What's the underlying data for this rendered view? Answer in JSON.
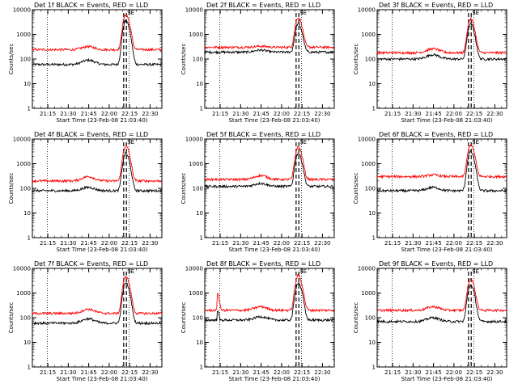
{
  "x_tick_labels": [
    "21:15",
    "21:30",
    "21:45",
    "22:00",
    "22:15",
    "22:30"
  ],
  "y_tick_labels": [
    "1",
    "10",
    "100",
    "1000",
    "10000"
  ],
  "xlabel": "Start Time (23-Feb-08 21:03:40)",
  "ylabel": "Counts/sec",
  "chart_data": [
    {
      "type": "line",
      "title": "Det 1f BLACK = Events, RED = LLD",
      "ylabel": "Counts/sec",
      "xlabel": "Start Time (23-Feb-08 21:03:40)",
      "x_ticks": [
        "21:15",
        "21:30",
        "21:45",
        "22:00",
        "22:15",
        "22:30"
      ],
      "y_scale": "log",
      "ylim": [
        1,
        10000
      ],
      "xlim_minutes": [
        0,
        95
      ],
      "dotted_lines_min": [
        11,
        71
      ],
      "dashed_lines_min": [
        67,
        69
      ],
      "marker_labels": [
        "S",
        "E"
      ],
      "series": [
        {
          "color": "#000000",
          "baseline": 60,
          "bump": 90,
          "peak": 3500
        },
        {
          "color": "#ff0000",
          "baseline": 240,
          "bump": 320,
          "peak": 6000
        }
      ]
    },
    {
      "type": "line",
      "title": "Det 2f BLACK = Events, RED = LLD",
      "ylabel": "Counts/sec",
      "xlabel": "Start Time (23-Feb-08 21:03:40)",
      "x_ticks": [
        "21:15",
        "21:30",
        "21:45",
        "22:00",
        "22:15",
        "22:30"
      ],
      "y_scale": "log",
      "ylim": [
        1,
        10000
      ],
      "xlim_minutes": [
        0,
        95
      ],
      "dotted_lines_min": [
        11,
        71
      ],
      "dashed_lines_min": [
        67,
        69
      ],
      "marker_labels": [
        "S",
        "E"
      ],
      "series": [
        {
          "color": "#000000",
          "baseline": 190,
          "bump": 230,
          "peak": 2500
        },
        {
          "color": "#ff0000",
          "baseline": 300,
          "bump": 330,
          "peak": 4500
        }
      ]
    },
    {
      "type": "line",
      "title": "Det 3f BLACK = Events, RED = LLD",
      "ylabel": "Counts/sec",
      "xlabel": "Start Time (23-Feb-08 21:03:40)",
      "x_ticks": [
        "21:15",
        "21:30",
        "21:45",
        "22:00",
        "22:15",
        "22:30"
      ],
      "y_scale": "log",
      "ylim": [
        1,
        10000
      ],
      "xlim_minutes": [
        0,
        95
      ],
      "dotted_lines_min": [
        11,
        71
      ],
      "dashed_lines_min": [
        67,
        69
      ],
      "marker_labels": [
        "S",
        "E"
      ],
      "series": [
        {
          "color": "#000000",
          "baseline": 100,
          "bump": 150,
          "peak": 2500
        },
        {
          "color": "#ff0000",
          "baseline": 180,
          "bump": 260,
          "peak": 4000
        }
      ]
    },
    {
      "type": "line",
      "title": "Det 4f BLACK = Events, RED = LLD",
      "ylabel": "Counts/sec",
      "xlabel": "Start Time (23-Feb-08 21:03:40)",
      "x_ticks": [
        "21:15",
        "21:30",
        "21:45",
        "22:00",
        "22:15",
        "22:30"
      ],
      "y_scale": "log",
      "ylim": [
        1,
        10000
      ],
      "xlim_minutes": [
        0,
        95
      ],
      "dotted_lines_min": [
        11,
        71
      ],
      "dashed_lines_min": [
        67,
        69
      ],
      "marker_labels": [
        "S",
        "E"
      ],
      "series": [
        {
          "color": "#000000",
          "baseline": 80,
          "bump": 110,
          "peak": 2500
        },
        {
          "color": "#ff0000",
          "baseline": 200,
          "bump": 300,
          "peak": 5000
        }
      ]
    },
    {
      "type": "line",
      "title": "Det 5f BLACK = Events, RED = LLD",
      "ylabel": "Counts/sec",
      "xlabel": "Start Time (23-Feb-08 21:03:40)",
      "x_ticks": [
        "21:15",
        "21:30",
        "21:45",
        "22:00",
        "22:15",
        "22:30"
      ],
      "y_scale": "log",
      "ylim": [
        1,
        10000
      ],
      "xlim_minutes": [
        0,
        95
      ],
      "dotted_lines_min": [
        11,
        71
      ],
      "dashed_lines_min": [
        67,
        69
      ],
      "marker_labels": [
        "S",
        "E"
      ],
      "series": [
        {
          "color": "#000000",
          "baseline": 120,
          "bump": 160,
          "peak": 2500
        },
        {
          "color": "#ff0000",
          "baseline": 230,
          "bump": 330,
          "peak": 4500
        }
      ]
    },
    {
      "type": "line",
      "title": "Det 6f BLACK = Events, RED = LLD",
      "ylabel": "Counts/sec",
      "xlabel": "Start Time (23-Feb-08 21:03:40)",
      "x_ticks": [
        "21:15",
        "21:30",
        "21:45",
        "22:00",
        "22:15",
        "22:30"
      ],
      "y_scale": "log",
      "ylim": [
        1,
        10000
      ],
      "xlim_minutes": [
        0,
        95
      ],
      "dotted_lines_min": [
        11,
        71
      ],
      "dashed_lines_min": [
        67,
        69
      ],
      "marker_labels": [
        "S",
        "E"
      ],
      "series": [
        {
          "color": "#000000",
          "baseline": 80,
          "bump": 110,
          "peak": 3000
        },
        {
          "color": "#ff0000",
          "baseline": 300,
          "bump": 350,
          "peak": 5500
        }
      ]
    },
    {
      "type": "line",
      "title": "Det 7f BLACK = Events, RED = LLD",
      "ylabel": "Counts/sec",
      "xlabel": "Start Time (23-Feb-08 21:03:40)",
      "x_ticks": [
        "21:15",
        "21:30",
        "21:45",
        "22:00",
        "22:15",
        "22:30"
      ],
      "y_scale": "log",
      "ylim": [
        1,
        10000
      ],
      "xlim_minutes": [
        0,
        95
      ],
      "dotted_lines_min": [
        11,
        71
      ],
      "dashed_lines_min": [
        67,
        69
      ],
      "marker_labels": [
        "S",
        "E"
      ],
      "series": [
        {
          "color": "#000000",
          "baseline": 60,
          "bump": 90,
          "peak": 2500
        },
        {
          "color": "#ff0000",
          "baseline": 150,
          "bump": 220,
          "peak": 4500
        }
      ]
    },
    {
      "type": "line",
      "title": "Det 8f BLACK = Events, RED = LLD",
      "ylabel": "Counts/sec",
      "xlabel": "Start Time (23-Feb-08 21:03:40)",
      "x_ticks": [
        "21:15",
        "21:30",
        "21:45",
        "22:00",
        "22:15",
        "22:30"
      ],
      "y_scale": "log",
      "ylim": [
        1,
        10000
      ],
      "xlim_minutes": [
        0,
        95
      ],
      "dotted_lines_min": [
        11,
        71
      ],
      "dashed_lines_min": [
        67,
        69
      ],
      "marker_labels": [
        "S",
        "E"
      ],
      "series": [
        {
          "color": "#000000",
          "baseline": 80,
          "bump": 110,
          "peak": 2500,
          "early_spike": 200
        },
        {
          "color": "#ff0000",
          "baseline": 200,
          "bump": 280,
          "peak": 5000,
          "early_spike": 1000
        }
      ]
    },
    {
      "type": "line",
      "title": "Det 9f BLACK = Events, RED = LLD",
      "ylabel": "Counts/sec",
      "xlabel": "Start Time (23-Feb-08 21:03:40)",
      "x_ticks": [
        "21:15",
        "21:30",
        "21:45",
        "22:00",
        "22:15",
        "22:30"
      ],
      "y_scale": "log",
      "ylim": [
        1,
        10000
      ],
      "xlim_minutes": [
        0,
        95
      ],
      "dotted_lines_min": [
        11,
        71
      ],
      "dashed_lines_min": [
        67,
        69
      ],
      "marker_labels": [
        "S",
        "E"
      ],
      "series": [
        {
          "color": "#000000",
          "baseline": 70,
          "bump": 100,
          "peak": 2000
        },
        {
          "color": "#ff0000",
          "baseline": 200,
          "bump": 280,
          "peak": 3500
        }
      ]
    }
  ]
}
